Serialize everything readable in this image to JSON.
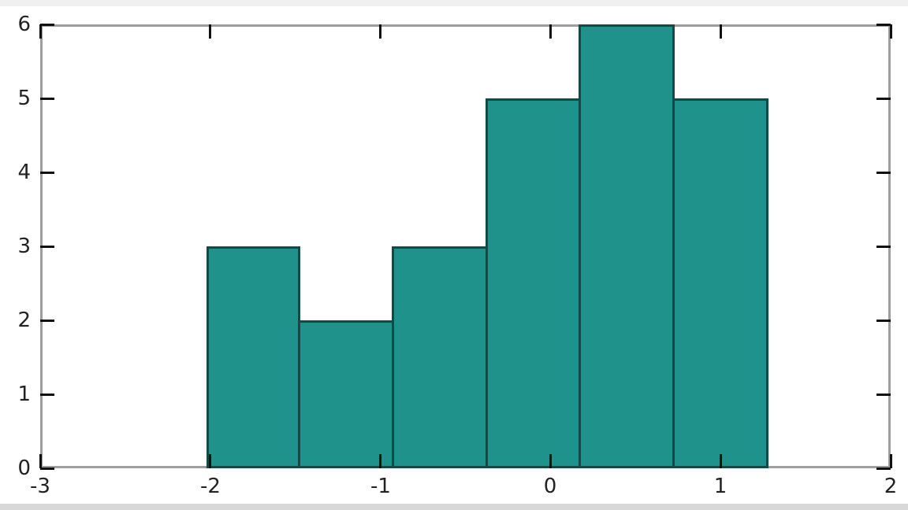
{
  "window": {
    "background": "#ffffff",
    "top_strip_color": "#f0f0f0",
    "bottom_strip_color": "#d8d8d8"
  },
  "chart_data": {
    "type": "bar",
    "subtype": "histogram",
    "title": "",
    "xlabel": "",
    "ylabel": "",
    "bin_edges": [
      -2.02,
      -1.47,
      -0.92,
      -0.37,
      0.18,
      0.73,
      1.28
    ],
    "counts": [
      3,
      2,
      3,
      5,
      6,
      5
    ],
    "xlim": [
      -3,
      2
    ],
    "ylim": [
      0,
      6
    ],
    "x_ticks": [
      -3,
      -2,
      -1,
      0,
      1,
      2
    ],
    "y_ticks": [
      0,
      1,
      2,
      3,
      4,
      5,
      6
    ],
    "x_tick_labels": [
      "-3",
      "-2",
      "-1",
      "0",
      "1",
      "2"
    ],
    "y_tick_labels": [
      "0",
      "1",
      "2",
      "3",
      "4",
      "5",
      "6"
    ],
    "grid": false,
    "legend": null,
    "tick_style": "inward-all-sides",
    "colors": {
      "bar_fill": "#20928c",
      "bar_edge": "#114b48",
      "frame": "#9e9e9e",
      "tick": "#111111",
      "label": "#222222"
    }
  }
}
